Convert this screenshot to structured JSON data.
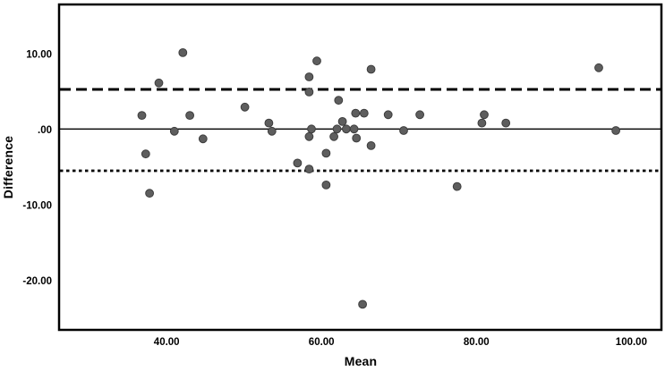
{
  "chart_data": {
    "type": "scatter",
    "title": "",
    "xlabel": "Mean",
    "ylabel": "Difference",
    "xlim": [
      26.0,
      104.0
    ],
    "ylim": [
      -26.6,
      16.7
    ],
    "grid": false,
    "legend": "none",
    "x_ticks": [
      {
        "value": 40,
        "label": "40.00"
      },
      {
        "value": 60,
        "label": "60.00"
      },
      {
        "value": 80,
        "label": "80.00"
      },
      {
        "value": 100,
        "label": "100.00"
      }
    ],
    "y_ticks": [
      {
        "value": 10,
        "label": "10.00"
      },
      {
        "value": 0,
        "label": ".00"
      },
      {
        "value": -10,
        "label": "-10.00"
      },
      {
        "value": -20,
        "label": "-20.00"
      }
    ],
    "reference_lines": [
      {
        "name": "upper-loa-line",
        "value": 5.35,
        "style": "dashed"
      },
      {
        "name": "mean-line",
        "value": 0.1,
        "style": "solid"
      },
      {
        "name": "lower-loa-line",
        "value": -5.42,
        "style": "dotted"
      }
    ],
    "points": [
      [
        42.1,
        10.2
      ],
      [
        39.0,
        6.2
      ],
      [
        36.8,
        1.9
      ],
      [
        43.0,
        1.9
      ],
      [
        50.1,
        3.0
      ],
      [
        41.0,
        -0.2
      ],
      [
        44.7,
        -1.2
      ],
      [
        53.2,
        0.9
      ],
      [
        53.6,
        -0.2
      ],
      [
        37.3,
        -3.2
      ],
      [
        56.9,
        -4.4
      ],
      [
        37.8,
        -8.4
      ],
      [
        59.4,
        9.1
      ],
      [
        66.4,
        8.0
      ],
      [
        58.4,
        7.0
      ],
      [
        58.4,
        5.0
      ],
      [
        62.2,
        3.9
      ],
      [
        64.4,
        2.2
      ],
      [
        65.5,
        2.2
      ],
      [
        68.6,
        2.0
      ],
      [
        62.7,
        1.1
      ],
      [
        58.7,
        0.1
      ],
      [
        62.0,
        0.1
      ],
      [
        63.2,
        0.1
      ],
      [
        64.2,
        0.1
      ],
      [
        58.4,
        -0.9
      ],
      [
        61.6,
        -0.9
      ],
      [
        64.5,
        -1.1
      ],
      [
        66.4,
        -2.1
      ],
      [
        60.6,
        -3.1
      ],
      [
        58.4,
        -5.2
      ],
      [
        60.6,
        -7.3
      ],
      [
        72.7,
        2.0
      ],
      [
        81.0,
        2.0
      ],
      [
        80.7,
        0.9
      ],
      [
        83.8,
        0.9
      ],
      [
        70.6,
        -0.1
      ],
      [
        95.8,
        8.2
      ],
      [
        98.0,
        -0.1
      ],
      [
        77.5,
        -7.5
      ],
      [
        65.3,
        -23.1
      ]
    ]
  },
  "colors": {
    "background": "#ffffff",
    "frame": "#000000",
    "reference_line": "#000000",
    "point_fill": "#5e5e5e",
    "point_stroke": "#3d3d3d",
    "text": "#000000"
  }
}
